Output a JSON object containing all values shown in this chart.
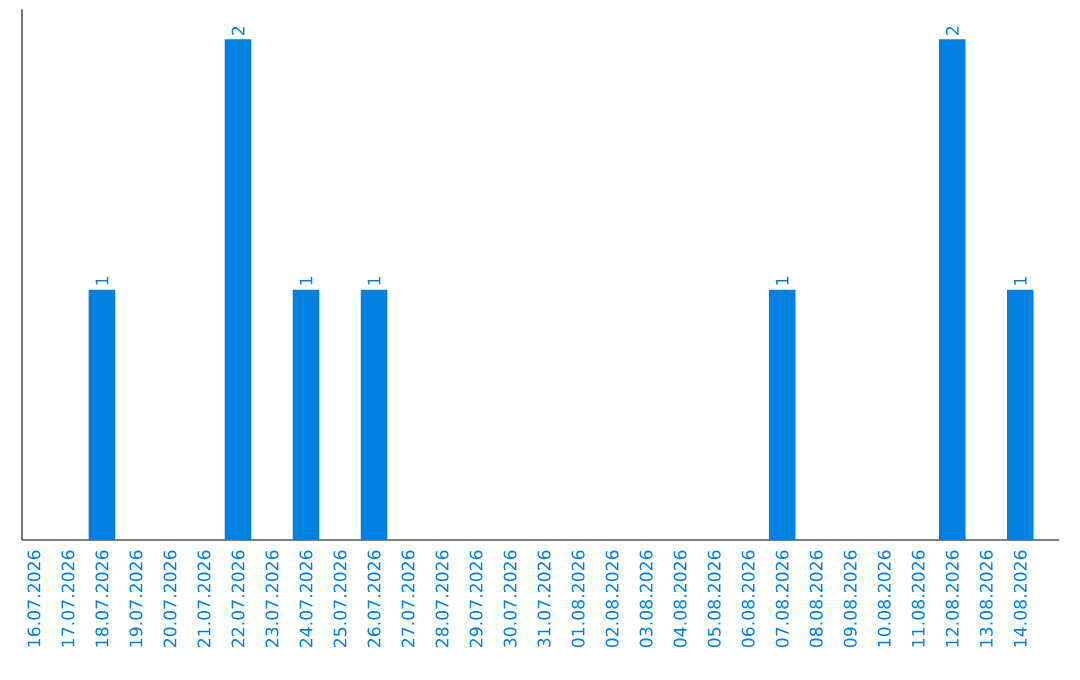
{
  "chart_data": {
    "type": "bar",
    "categories": [
      "16.07.2026",
      "17.07.2026",
      "18.07.2026",
      "19.07.2026",
      "20.07.2026",
      "21.07.2026",
      "22.07.2026",
      "23.07.2026",
      "24.07.2026",
      "25.07.2026",
      "26.07.2026",
      "27.07.2026",
      "28.07.2026",
      "29.07.2026",
      "30.07.2026",
      "31.07.2026",
      "01.08.2026",
      "02.08.2026",
      "03.08.2026",
      "04.08.2026",
      "05.08.2026",
      "06.08.2026",
      "07.08.2026",
      "08.08.2026",
      "09.08.2026",
      "10.08.2026",
      "11.08.2026",
      "12.08.2026",
      "13.08.2026",
      "14.08.2026"
    ],
    "values": [
      0,
      0,
      1,
      0,
      0,
      0,
      2,
      0,
      1,
      0,
      1,
      0,
      0,
      0,
      0,
      0,
      0,
      0,
      0,
      0,
      0,
      0,
      1,
      0,
      0,
      0,
      0,
      2,
      0,
      1
    ],
    "value_labels": [
      null,
      null,
      "1",
      null,
      null,
      null,
      "2",
      null,
      "1",
      null,
      "1",
      null,
      null,
      null,
      null,
      null,
      null,
      null,
      null,
      null,
      null,
      null,
      "1",
      null,
      null,
      null,
      null,
      "2",
      null,
      "1"
    ],
    "color": "#0080e0",
    "ylim": [
      0,
      2.12
    ],
    "tick_labels": "x"
  }
}
